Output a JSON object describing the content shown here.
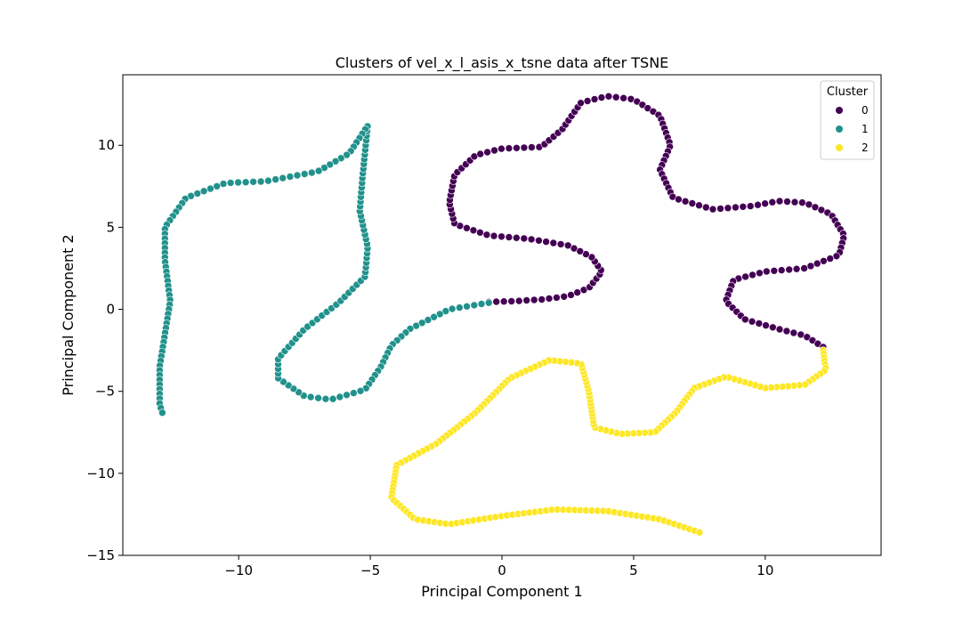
{
  "chart_data": {
    "type": "scatter",
    "title": "Clusters of vel_x_l_asis_x_tsne data after TSNE",
    "xlabel": "Principal Component 1",
    "ylabel": "Principal Component 2",
    "xlim": [
      -14.4,
      14.4
    ],
    "ylim": [
      -15,
      14.3
    ],
    "x_ticks": [
      -10,
      -5,
      0,
      5,
      10
    ],
    "y_ticks": [
      -15,
      -10,
      -5,
      0,
      5,
      10
    ],
    "x_tick_labels": [
      "−10",
      "−5",
      "0",
      "5",
      "10"
    ],
    "y_tick_labels": [
      "−15",
      "−10",
      "−5",
      "0",
      "5",
      "10"
    ],
    "grid": false,
    "legend": {
      "title": "Cluster",
      "placement": "top-right",
      "entries": [
        "0",
        "1",
        "2"
      ]
    },
    "series": [
      {
        "name": "0",
        "color": "#440154",
        "path": [
          [
            -0.5,
            0.45
          ],
          [
            0.5,
            0.5
          ],
          [
            1.5,
            0.6
          ],
          [
            2.5,
            0.8
          ],
          [
            3.3,
            1.3
          ],
          [
            3.8,
            2.3
          ],
          [
            3.4,
            3.2
          ],
          [
            2.5,
            3.9
          ],
          [
            1.0,
            4.3
          ],
          [
            -0.5,
            4.5
          ],
          [
            -1.8,
            5.2
          ],
          [
            -2.0,
            6.5
          ],
          [
            -1.8,
            8.2
          ],
          [
            -1.0,
            9.4
          ],
          [
            0.0,
            9.8
          ],
          [
            1.5,
            9.9
          ],
          [
            2.3,
            11.0
          ],
          [
            3.0,
            12.6
          ],
          [
            4.0,
            13.0
          ],
          [
            5.0,
            12.8
          ],
          [
            6.0,
            11.8
          ],
          [
            6.4,
            10.0
          ],
          [
            6.0,
            8.5
          ],
          [
            6.5,
            6.8
          ],
          [
            8.0,
            6.1
          ],
          [
            9.5,
            6.3
          ],
          [
            10.5,
            6.6
          ],
          [
            11.5,
            6.5
          ],
          [
            12.5,
            5.8
          ],
          [
            13.0,
            4.5
          ],
          [
            12.8,
            3.3
          ],
          [
            11.5,
            2.5
          ],
          [
            10.0,
            2.3
          ],
          [
            8.8,
            1.8
          ],
          [
            8.5,
            0.5
          ],
          [
            9.2,
            -0.6
          ],
          [
            10.5,
            -1.2
          ],
          [
            11.5,
            -1.6
          ],
          [
            12.2,
            -2.3
          ]
        ],
        "count": 175
      },
      {
        "name": "1",
        "color": "#21918c",
        "path": [
          [
            -0.5,
            0.4
          ],
          [
            -2.0,
            0.0
          ],
          [
            -3.5,
            -1.2
          ],
          [
            -4.2,
            -2.2
          ],
          [
            -4.6,
            -3.5
          ],
          [
            -5.2,
            -4.9
          ],
          [
            -6.5,
            -5.5
          ],
          [
            -7.5,
            -5.3
          ],
          [
            -8.5,
            -4.2
          ],
          [
            -8.5,
            -3.0
          ],
          [
            -7.5,
            -1.2
          ],
          [
            -6.2,
            0.4
          ],
          [
            -5.2,
            2.0
          ],
          [
            -5.1,
            3.8
          ],
          [
            -5.4,
            6.0
          ],
          [
            -5.3,
            8.0
          ],
          [
            -5.1,
            11.2
          ],
          [
            -5.8,
            9.5
          ],
          [
            -7.0,
            8.4
          ],
          [
            -9.0,
            7.8
          ],
          [
            -10.5,
            7.7
          ],
          [
            -12.0,
            6.8
          ],
          [
            -12.8,
            5.0
          ],
          [
            -12.8,
            3.0
          ],
          [
            -12.6,
            0.5
          ],
          [
            -12.8,
            -1.5
          ],
          [
            -13.0,
            -3.5
          ],
          [
            -13.0,
            -5.8
          ],
          [
            -12.9,
            -6.3
          ]
        ],
        "count": 175
      },
      {
        "name": "2",
        "color": "#fde725",
        "path": [
          [
            12.2,
            -2.5
          ],
          [
            12.3,
            -3.7
          ],
          [
            11.5,
            -4.6
          ],
          [
            10.0,
            -4.8
          ],
          [
            8.5,
            -4.1
          ],
          [
            7.3,
            -4.8
          ],
          [
            6.6,
            -6.3
          ],
          [
            5.8,
            -7.5
          ],
          [
            4.5,
            -7.6
          ],
          [
            3.5,
            -7.2
          ],
          [
            3.3,
            -5.0
          ],
          [
            3.0,
            -3.3
          ],
          [
            1.8,
            -3.1
          ],
          [
            0.3,
            -4.2
          ],
          [
            -1.0,
            -6.3
          ],
          [
            -2.5,
            -8.2
          ],
          [
            -4.0,
            -9.5
          ],
          [
            -4.2,
            -11.5
          ],
          [
            -3.3,
            -12.8
          ],
          [
            -2.0,
            -13.1
          ],
          [
            0.0,
            -12.6
          ],
          [
            2.0,
            -12.2
          ],
          [
            4.0,
            -12.3
          ],
          [
            6.0,
            -12.8
          ],
          [
            7.5,
            -13.6
          ]
        ],
        "count": 190
      }
    ]
  }
}
